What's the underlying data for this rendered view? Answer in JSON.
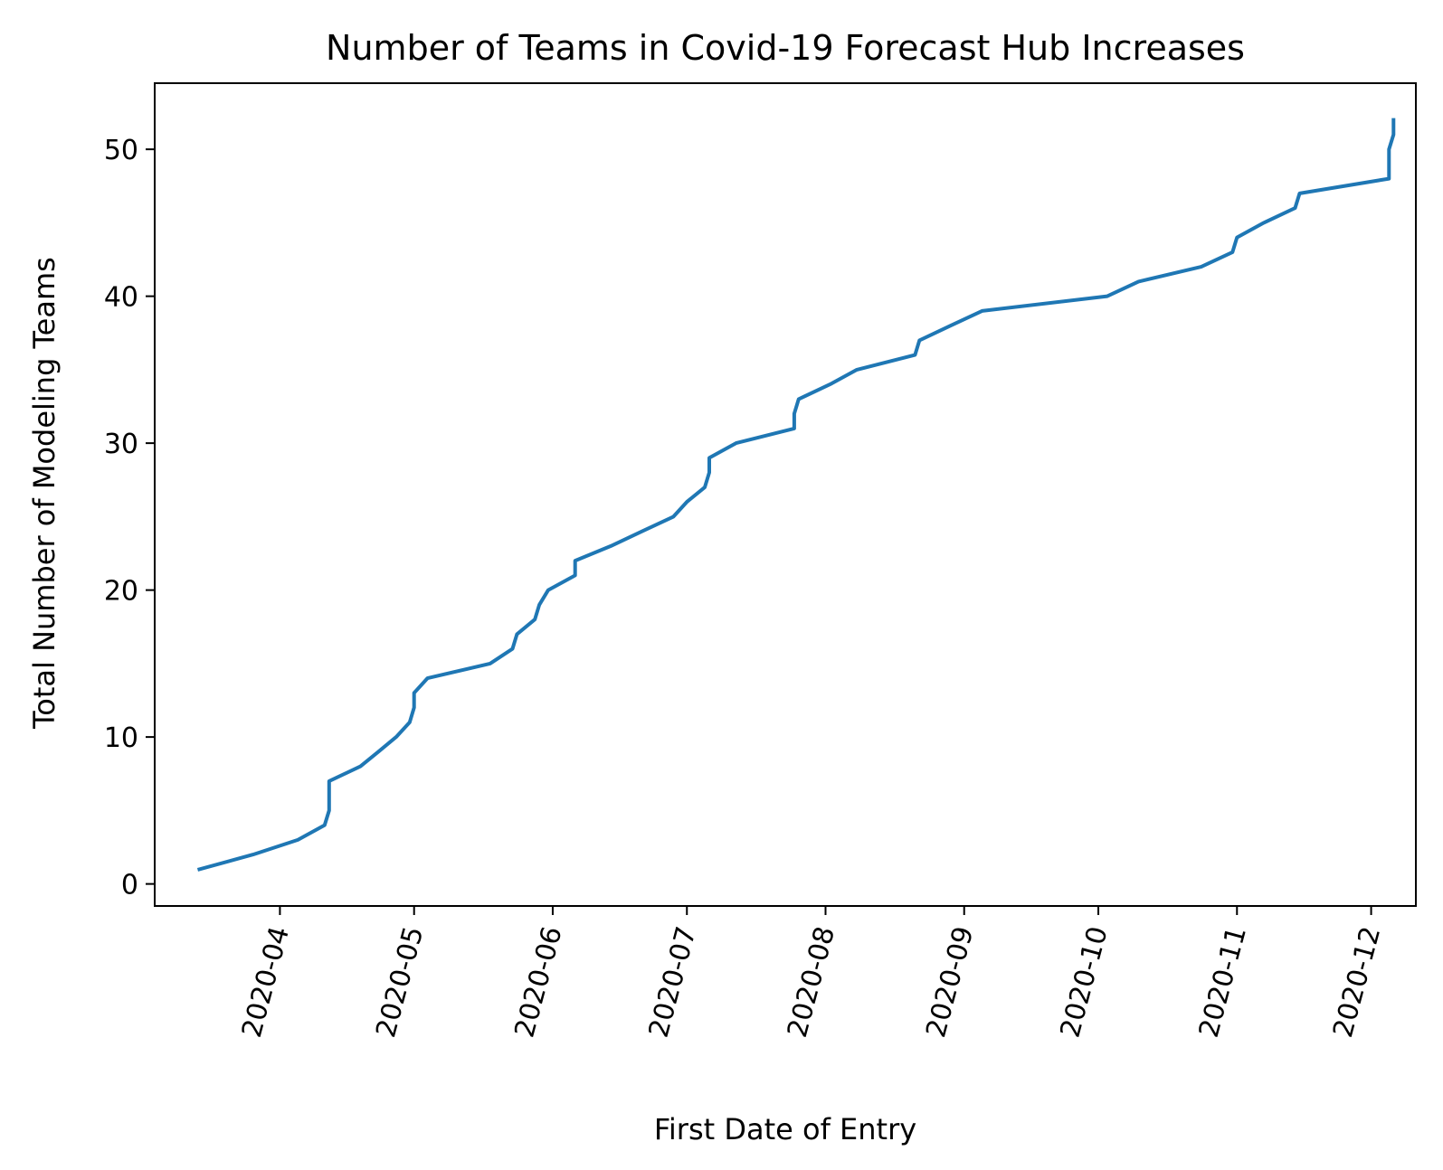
{
  "chart_data": {
    "type": "line",
    "title": "Number of Teams in Covid-19 Forecast Hub Increases",
    "xlabel": "First Date of Entry",
    "ylabel": "Total Number of Modeling Teams",
    "xlim": [
      "2020-03-04",
      "2020-12-11"
    ],
    "ylim": [
      -1.5,
      54.5
    ],
    "x_ticks": [
      "2020-04",
      "2020-05",
      "2020-06",
      "2020-07",
      "2020-08",
      "2020-09",
      "2020-10",
      "2020-11",
      "2020-12"
    ],
    "y_ticks": [
      0,
      10,
      20,
      30,
      40,
      50
    ],
    "grid": false,
    "series": [
      {
        "color": "#1f77b4",
        "points": [
          [
            "2020-03-14",
            1
          ],
          [
            "2020-03-26",
            2
          ],
          [
            "2020-04-05",
            3
          ],
          [
            "2020-04-11",
            4
          ],
          [
            "2020-04-12",
            5
          ],
          [
            "2020-04-12",
            6
          ],
          [
            "2020-04-12",
            7
          ],
          [
            "2020-04-19",
            8
          ],
          [
            "2020-04-23",
            9
          ],
          [
            "2020-04-27",
            10
          ],
          [
            "2020-04-30",
            11
          ],
          [
            "2020-05-01",
            12
          ],
          [
            "2020-05-01",
            13
          ],
          [
            "2020-05-04",
            14
          ],
          [
            "2020-05-18",
            15
          ],
          [
            "2020-05-23",
            16
          ],
          [
            "2020-05-24",
            17
          ],
          [
            "2020-05-28",
            18
          ],
          [
            "2020-05-29",
            19
          ],
          [
            "2020-05-31",
            20
          ],
          [
            "2020-06-06",
            21
          ],
          [
            "2020-06-06",
            22
          ],
          [
            "2020-06-14",
            23
          ],
          [
            "2020-06-21",
            24
          ],
          [
            "2020-06-28",
            25
          ],
          [
            "2020-07-01",
            26
          ],
          [
            "2020-07-05",
            27
          ],
          [
            "2020-07-06",
            28
          ],
          [
            "2020-07-06",
            29
          ],
          [
            "2020-07-12",
            30
          ],
          [
            "2020-07-25",
            31
          ],
          [
            "2020-07-25",
            32
          ],
          [
            "2020-07-26",
            33
          ],
          [
            "2020-08-02",
            34
          ],
          [
            "2020-08-08",
            35
          ],
          [
            "2020-08-21",
            36
          ],
          [
            "2020-08-22",
            37
          ],
          [
            "2020-08-29",
            38
          ],
          [
            "2020-09-05",
            39
          ],
          [
            "2020-10-03",
            40
          ],
          [
            "2020-10-10",
            41
          ],
          [
            "2020-10-24",
            42
          ],
          [
            "2020-10-31",
            43
          ],
          [
            "2020-11-01",
            44
          ],
          [
            "2020-11-07",
            45
          ],
          [
            "2020-11-14",
            46
          ],
          [
            "2020-11-15",
            47
          ],
          [
            "2020-12-05",
            48
          ],
          [
            "2020-12-05",
            49
          ],
          [
            "2020-12-05",
            50
          ],
          [
            "2020-12-06",
            51
          ],
          [
            "2020-12-06",
            52
          ]
        ]
      }
    ]
  }
}
